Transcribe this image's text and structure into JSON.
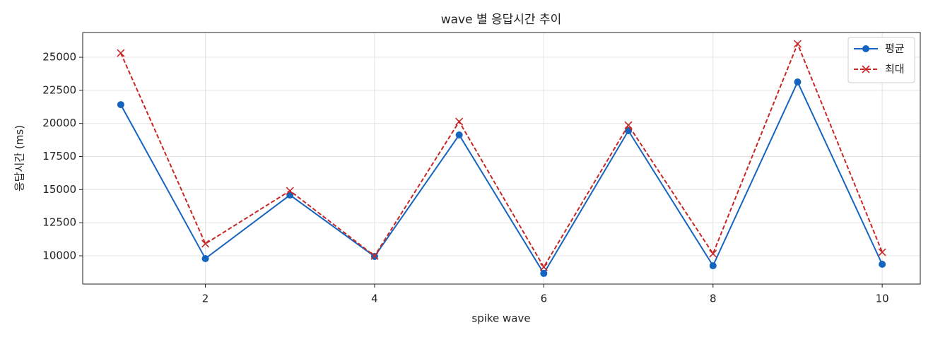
{
  "chart_data": {
    "type": "line",
    "title": "wave 별 응답시간 추이",
    "x_label": "spike wave",
    "y_label": "응답시간 (ms)",
    "x": [
      1,
      2,
      3,
      4,
      5,
      6,
      7,
      8,
      9,
      10
    ],
    "series": [
      {
        "name": "평균",
        "color": "#1565c0",
        "linestyle": "solid",
        "marker": "o",
        "values": [
          21420,
          9790,
          14590,
          9950,
          19130,
          8670,
          19450,
          9250,
          23130,
          9360
        ]
      },
      {
        "name": "최대",
        "color": "#c62828",
        "linestyle": "dashed",
        "marker": "x",
        "values": [
          25320,
          10910,
          14910,
          9990,
          20140,
          9150,
          19870,
          10160,
          26010,
          10270
        ]
      }
    ],
    "xlim": [
      0.55,
      10.45
    ],
    "xticks": [
      2,
      4,
      6,
      8,
      10
    ],
    "ylim": [
      7865,
      26870
    ],
    "yticks": [
      10000,
      12500,
      15000,
      17500,
      20000,
      22500,
      25000
    ],
    "grid": true,
    "legend": "upper right"
  }
}
